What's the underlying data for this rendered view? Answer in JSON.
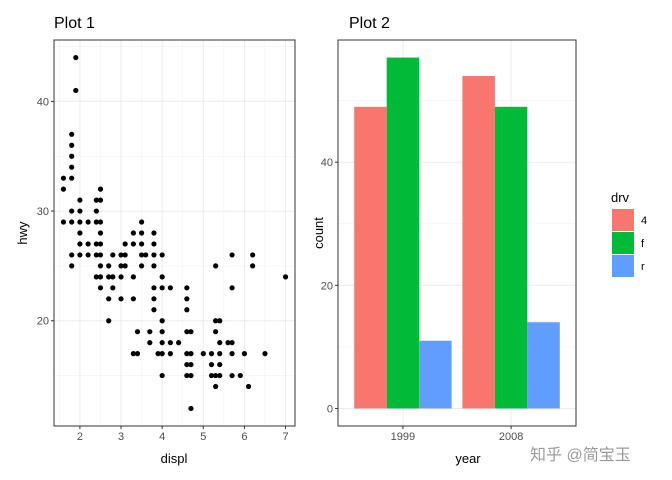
{
  "chart_data": [
    {
      "type": "scatter",
      "title": "Plot 1",
      "xlabel": "displ",
      "ylabel": "hwy",
      "xlim": [
        1.37,
        7.23
      ],
      "ylim": [
        10.4,
        45.6
      ],
      "xticks": [
        2,
        3,
        4,
        5,
        6,
        7
      ],
      "yticks": [
        20,
        30,
        40
      ],
      "grid": true,
      "point_color": "#000000",
      "points": [
        [
          1.9,
          44
        ],
        [
          1.9,
          41
        ],
        [
          1.8,
          37
        ],
        [
          1.8,
          36
        ],
        [
          1.8,
          35
        ],
        [
          1.8,
          34
        ],
        [
          1.6,
          33
        ],
        [
          1.8,
          33
        ],
        [
          1.6,
          32
        ],
        [
          2.5,
          32
        ],
        [
          2.0,
          31
        ],
        [
          2.4,
          31
        ],
        [
          2.5,
          31
        ],
        [
          1.8,
          30
        ],
        [
          2.0,
          30
        ],
        [
          2.4,
          30
        ],
        [
          1.6,
          29
        ],
        [
          1.8,
          29
        ],
        [
          2.0,
          29
        ],
        [
          2.2,
          29
        ],
        [
          2.4,
          29
        ],
        [
          2.5,
          29
        ],
        [
          3.5,
          29
        ],
        [
          2.0,
          28
        ],
        [
          2.5,
          28
        ],
        [
          3.3,
          28
        ],
        [
          3.5,
          28
        ],
        [
          3.8,
          28
        ],
        [
          2.0,
          27
        ],
        [
          2.2,
          27
        ],
        [
          2.4,
          27
        ],
        [
          2.5,
          27
        ],
        [
          3.1,
          27
        ],
        [
          3.3,
          27
        ],
        [
          3.5,
          27
        ],
        [
          3.8,
          27
        ],
        [
          1.8,
          26
        ],
        [
          2.0,
          26
        ],
        [
          2.2,
          26
        ],
        [
          2.4,
          26
        ],
        [
          2.5,
          26
        ],
        [
          2.8,
          26
        ],
        [
          3.0,
          26
        ],
        [
          3.1,
          26
        ],
        [
          3.5,
          26
        ],
        [
          3.6,
          26
        ],
        [
          3.8,
          26
        ],
        [
          4.0,
          26
        ],
        [
          5.7,
          26
        ],
        [
          6.2,
          26
        ],
        [
          1.8,
          25
        ],
        [
          2.5,
          25
        ],
        [
          2.7,
          25
        ],
        [
          3.0,
          25
        ],
        [
          3.1,
          25
        ],
        [
          3.5,
          25
        ],
        [
          3.8,
          25
        ],
        [
          5.3,
          25
        ],
        [
          6.2,
          25
        ],
        [
          2.4,
          24
        ],
        [
          2.5,
          24
        ],
        [
          2.7,
          24
        ],
        [
          2.8,
          24
        ],
        [
          3.0,
          24
        ],
        [
          3.3,
          24
        ],
        [
          4.0,
          24
        ],
        [
          7.0,
          24
        ],
        [
          2.5,
          23
        ],
        [
          2.8,
          23
        ],
        [
          3.8,
          23
        ],
        [
          4.0,
          23
        ],
        [
          4.2,
          23
        ],
        [
          4.6,
          23
        ],
        [
          5.7,
          23
        ],
        [
          2.7,
          22
        ],
        [
          3.0,
          22
        ],
        [
          3.3,
          22
        ],
        [
          3.8,
          22
        ],
        [
          4.6,
          22
        ],
        [
          3.8,
          21
        ],
        [
          4.6,
          21
        ],
        [
          2.7,
          20
        ],
        [
          4.0,
          20
        ],
        [
          5.3,
          20
        ],
        [
          5.4,
          20
        ],
        [
          3.4,
          19
        ],
        [
          3.7,
          19
        ],
        [
          4.0,
          19
        ],
        [
          4.6,
          19
        ],
        [
          4.7,
          19
        ],
        [
          5.3,
          19
        ],
        [
          3.7,
          18
        ],
        [
          4.0,
          18
        ],
        [
          4.2,
          18
        ],
        [
          4.4,
          18
        ],
        [
          5.4,
          18
        ],
        [
          5.6,
          18
        ],
        [
          5.7,
          18
        ],
        [
          3.3,
          17
        ],
        [
          3.4,
          17
        ],
        [
          3.9,
          17
        ],
        [
          4.0,
          17
        ],
        [
          4.2,
          17
        ],
        [
          4.6,
          17
        ],
        [
          4.7,
          17
        ],
        [
          5.0,
          17
        ],
        [
          5.2,
          17
        ],
        [
          5.4,
          17
        ],
        [
          5.7,
          17
        ],
        [
          6.0,
          17
        ],
        [
          6.5,
          17
        ],
        [
          4.6,
          16
        ],
        [
          4.7,
          16
        ],
        [
          5.2,
          16
        ],
        [
          5.4,
          16
        ],
        [
          4.0,
          15
        ],
        [
          4.6,
          15
        ],
        [
          4.7,
          15
        ],
        [
          5.2,
          15
        ],
        [
          5.3,
          15
        ],
        [
          5.4,
          15
        ],
        [
          5.7,
          15
        ],
        [
          5.9,
          15
        ],
        [
          5.3,
          14
        ],
        [
          6.1,
          14
        ],
        [
          4.7,
          12
        ]
      ]
    },
    {
      "type": "bar",
      "title": "Plot 2",
      "xlabel": "year",
      "ylabel": "count",
      "categories": [
        "1999",
        "2008"
      ],
      "ylim": [
        -2.85,
        59.85
      ],
      "yticks": [
        0,
        20,
        40
      ],
      "grid": true,
      "position": "dodge",
      "legend": {
        "title": "drv",
        "placement": "right"
      },
      "series": [
        {
          "name": "4",
          "color": "#F8766D",
          "values": [
            49,
            54
          ]
        },
        {
          "name": "f",
          "color": "#00BA38",
          "values": [
            57,
            49
          ]
        },
        {
          "name": "r",
          "color": "#619CFF",
          "values": [
            11,
            14
          ]
        }
      ]
    }
  ],
  "watermark": "知乎 @简宝玉"
}
